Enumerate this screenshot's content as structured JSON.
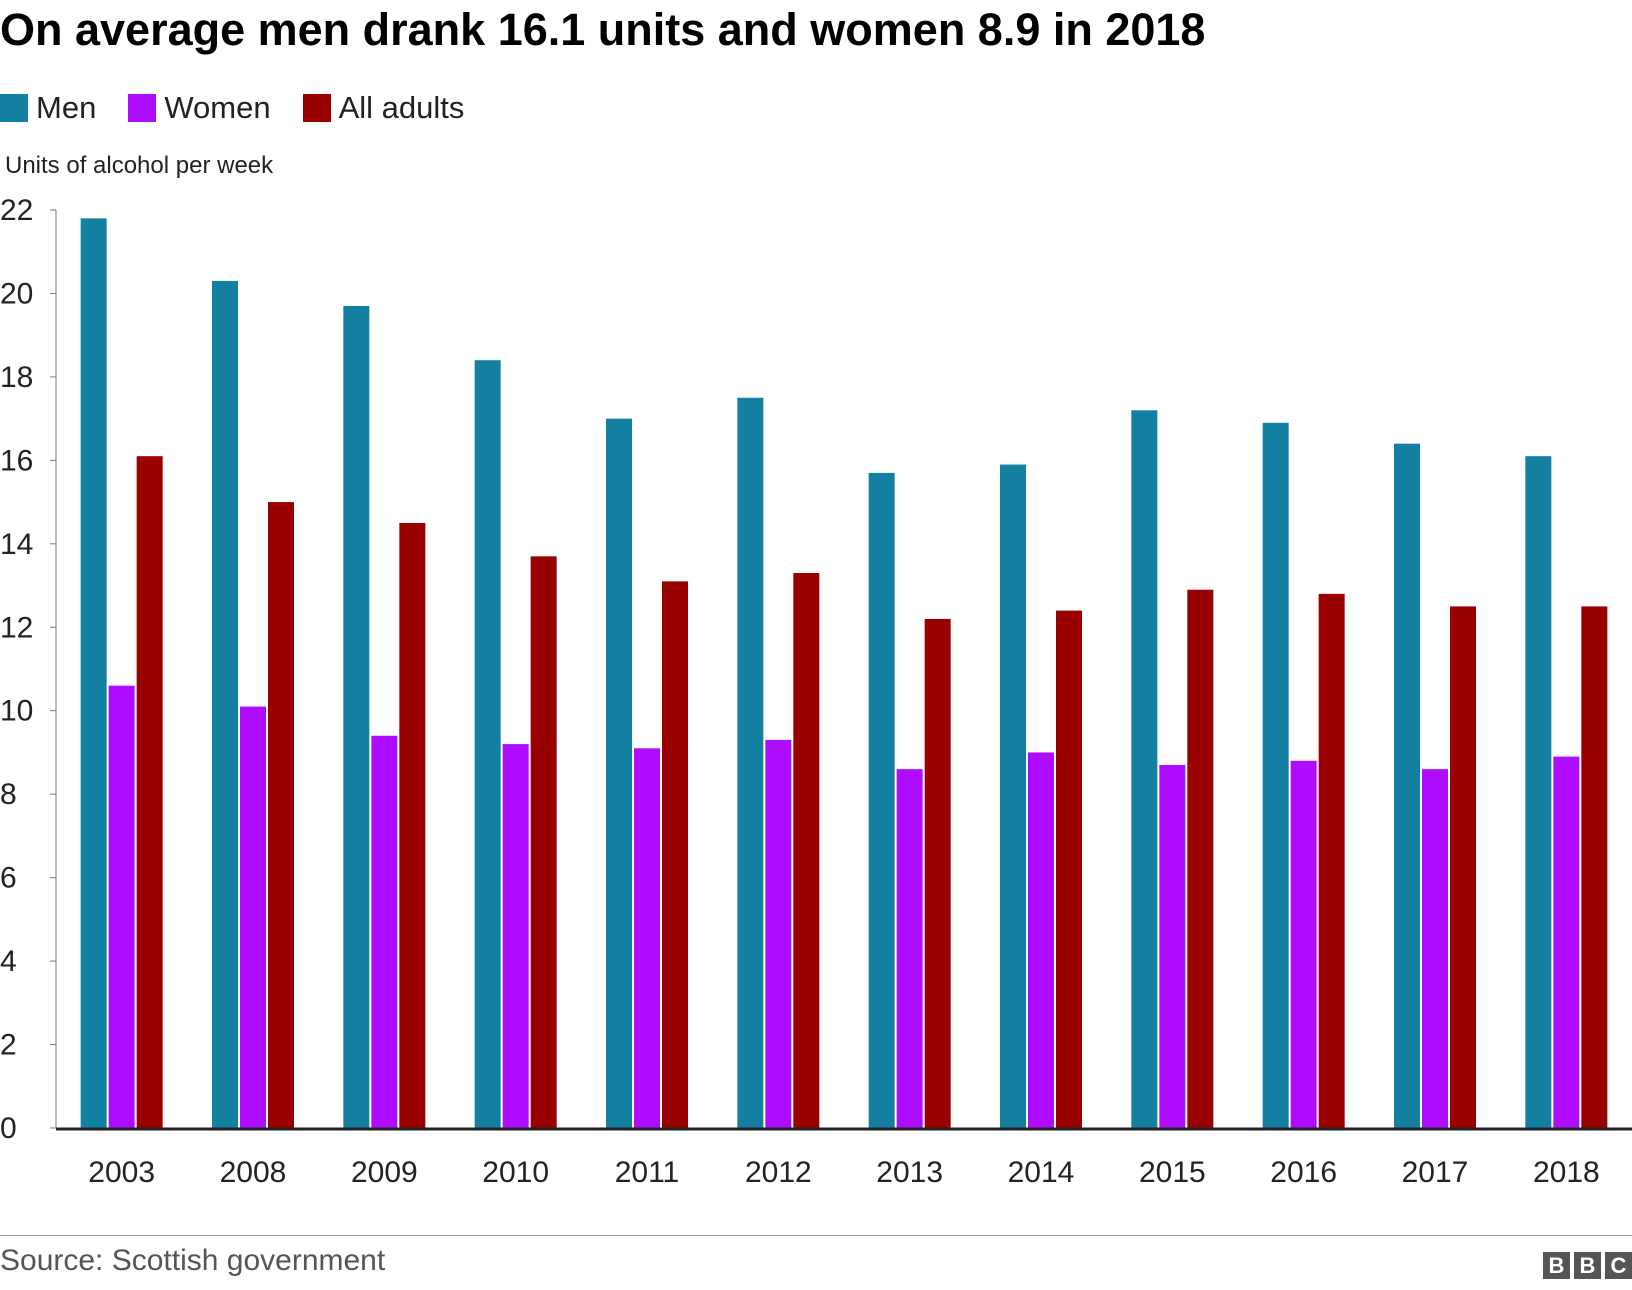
{
  "chart_data": {
    "type": "bar",
    "title": "On average men drank 16.1 units and women 8.9 in 2018",
    "ylabel": "Units of alcohol per week",
    "xlabel": "",
    "ylim": [
      0,
      22
    ],
    "yticks": [
      0,
      2,
      4,
      6,
      8,
      10,
      12,
      14,
      16,
      18,
      20,
      22
    ],
    "grid": false,
    "legend_position": "top-left",
    "categories": [
      "2003",
      "2008",
      "2009",
      "2010",
      "2011",
      "2012",
      "2013",
      "2014",
      "2015",
      "2016",
      "2017",
      "2018"
    ],
    "series": [
      {
        "name": "Men",
        "color": "#1380A1",
        "values": [
          21.8,
          20.3,
          19.7,
          18.4,
          17.0,
          17.5,
          15.7,
          15.9,
          17.2,
          16.9,
          16.4,
          16.1
        ]
      },
      {
        "name": "Women",
        "color": "#AE0CFF",
        "values": [
          10.6,
          10.1,
          9.4,
          9.2,
          9.1,
          9.3,
          8.6,
          9.0,
          8.7,
          8.8,
          8.6,
          8.9
        ]
      },
      {
        "name": "All adults",
        "color": "#990000",
        "values": [
          16.1,
          15.0,
          14.5,
          13.7,
          13.1,
          13.3,
          12.2,
          12.4,
          12.9,
          12.8,
          12.5,
          12.5
        ]
      }
    ]
  },
  "footer": {
    "source": "Source: Scottish government",
    "logo_letters": [
      "B",
      "B",
      "C"
    ]
  }
}
